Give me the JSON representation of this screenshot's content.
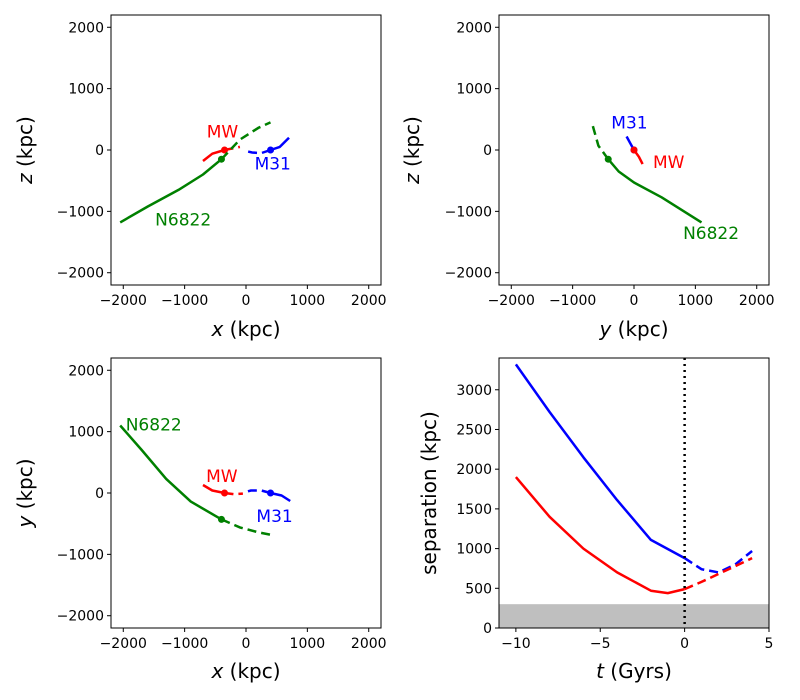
{
  "chart_data": [
    {
      "type": "line",
      "panel": "x-z",
      "xlabel_var": "x",
      "xlabel_unit": " (kpc)",
      "ylabel_var": "z",
      "ylabel_unit": " (kpc)",
      "xlim": [
        -2200,
        2200
      ],
      "ylim": [
        -2200,
        2200
      ],
      "xticks": [
        -2000,
        -1000,
        0,
        1000,
        2000
      ],
      "yticks": [
        -2000,
        -1000,
        0,
        1000,
        2000
      ],
      "series": [
        {
          "name": "MW",
          "color": "#ff0000",
          "marker": [
            -350,
            0
          ],
          "solid": [
            [
              -700,
              -180
            ],
            [
              -550,
              -60
            ],
            [
              -350,
              0
            ]
          ],
          "dashed": [
            [
              -350,
              0
            ],
            [
              -200,
              30
            ],
            [
              -100,
              50
            ]
          ]
        },
        {
          "name": "M31",
          "color": "#0000ff",
          "marker": [
            400,
            0
          ],
          "solid": [
            [
              400,
              0
            ],
            [
              550,
              50
            ],
            [
              700,
              200
            ]
          ],
          "dashed": [
            [
              400,
              0
            ],
            [
              250,
              -50
            ],
            [
              100,
              -40
            ],
            [
              -30,
              -10
            ]
          ]
        },
        {
          "name": "N6822",
          "color": "#008000",
          "marker": [
            -400,
            -150
          ],
          "solid": [
            [
              -2050,
              -1180
            ],
            [
              -1600,
              -920
            ],
            [
              -1100,
              -650
            ],
            [
              -700,
              -400
            ],
            [
              -400,
              -150
            ]
          ],
          "dashed": [
            [
              -400,
              -150
            ],
            [
              -100,
              170
            ],
            [
              200,
              360
            ],
            [
              400,
              450
            ]
          ]
        }
      ],
      "annotations": [
        {
          "text": "MW",
          "color": "#ff0000",
          "at": [
            -640,
            200
          ]
        },
        {
          "text": "M31",
          "color": "#0000ff",
          "at": [
            140,
            -320
          ]
        },
        {
          "text": "N6822",
          "color": "#008000",
          "at": [
            -1480,
            -1230
          ]
        }
      ]
    },
    {
      "type": "line",
      "panel": "y-z",
      "xlabel_var": "y",
      "xlabel_unit": " (kpc)",
      "ylabel_var": "z",
      "ylabel_unit": " (kpc)",
      "xlim": [
        -2200,
        2200
      ],
      "ylim": [
        -2200,
        2200
      ],
      "xticks": [
        -2000,
        -1000,
        0,
        1000,
        2000
      ],
      "yticks": [
        -2000,
        -1000,
        0,
        1000,
        2000
      ],
      "series": [
        {
          "name": "M31",
          "color": "#0000ff",
          "marker": [
            0,
            0
          ],
          "solid": [
            [
              -120,
              220
            ],
            [
              -60,
              110
            ],
            [
              0,
              0
            ]
          ],
          "dashed": []
        },
        {
          "name": "MW",
          "color": "#ff0000",
          "marker": [
            0,
            0
          ],
          "solid": [
            [
              0,
              0
            ],
            [
              80,
              -110
            ],
            [
              140,
              -230
            ]
          ],
          "dashed": []
        },
        {
          "name": "N6822",
          "color": "#008000",
          "marker": [
            -420,
            -150
          ],
          "solid": [
            [
              -420,
              -150
            ],
            [
              -250,
              -350
            ],
            [
              0,
              -530
            ],
            [
              450,
              -770
            ],
            [
              1100,
              -1180
            ]
          ],
          "dashed": [
            [
              -420,
              -150
            ],
            [
              -580,
              70
            ],
            [
              -680,
              420
            ]
          ]
        }
      ],
      "annotations": [
        {
          "text": "M31",
          "color": "#0000ff",
          "at": [
            -370,
            350
          ]
        },
        {
          "text": "MW",
          "color": "#ff0000",
          "at": [
            310,
            -290
          ]
        },
        {
          "text": "N6822",
          "color": "#008000",
          "at": [
            800,
            -1450
          ]
        }
      ]
    },
    {
      "type": "line",
      "panel": "x-y",
      "xlabel_var": "x",
      "xlabel_unit": " (kpc)",
      "ylabel_var": "y",
      "ylabel_unit": " (kpc)",
      "xlim": [
        -2200,
        2200
      ],
      "ylim": [
        -2200,
        2200
      ],
      "xticks": [
        -2000,
        -1000,
        0,
        1000,
        2000
      ],
      "yticks": [
        -2000,
        -1000,
        0,
        1000,
        2000
      ],
      "series": [
        {
          "name": "MW",
          "color": "#ff0000",
          "marker": [
            -350,
            0
          ],
          "solid": [
            [
              -700,
              130
            ],
            [
              -550,
              40
            ],
            [
              -350,
              0
            ]
          ],
          "dashed": [
            [
              -350,
              0
            ],
            [
              -200,
              -20
            ],
            [
              -50,
              -10
            ]
          ]
        },
        {
          "name": "M31",
          "color": "#0000ff",
          "marker": [
            400,
            0
          ],
          "solid": [
            [
              400,
              0
            ],
            [
              580,
              -40
            ],
            [
              720,
              -130
            ]
          ],
          "dashed": [
            [
              400,
              0
            ],
            [
              250,
              40
            ],
            [
              80,
              40
            ],
            [
              -30,
              10
            ]
          ]
        },
        {
          "name": "N6822",
          "color": "#008000",
          "marker": [
            -400,
            -430
          ],
          "solid": [
            [
              -2050,
              1100
            ],
            [
              -1700,
              700
            ],
            [
              -1300,
              230
            ],
            [
              -900,
              -140
            ],
            [
              -400,
              -430
            ]
          ],
          "dashed": [
            [
              -400,
              -430
            ],
            [
              -100,
              -560
            ],
            [
              200,
              -640
            ],
            [
              400,
              -680
            ]
          ]
        }
      ],
      "annotations": [
        {
          "text": "N6822",
          "color": "#008000",
          "at": [
            -1960,
            1020
          ]
        },
        {
          "text": "MW",
          "color": "#ff0000",
          "at": [
            -650,
            180
          ]
        },
        {
          "text": "M31",
          "color": "#0000ff",
          "at": [
            170,
            -470
          ]
        }
      ]
    },
    {
      "type": "line",
      "panel": "separation-vs-time",
      "xlabel_var": "t",
      "xlabel_unit": " (Gyrs)",
      "ylabel_var": "",
      "ylabel_unit": "separation (kpc)",
      "xlim": [
        -11,
        5
      ],
      "ylim": [
        0,
        3400
      ],
      "xticks": [
        -10,
        -5,
        0,
        5
      ],
      "yticks": [
        0,
        500,
        1000,
        1500,
        2000,
        2500,
        3000
      ],
      "shaded_below": 300,
      "vline_x": 0,
      "series": [
        {
          "name": "",
          "color": "#0000ff",
          "solid": [
            [
              -10,
              3320
            ],
            [
              -8,
              2720
            ],
            [
              -6,
              2150
            ],
            [
              -4,
              1610
            ],
            [
              -2,
              1110
            ],
            [
              0,
              880
            ]
          ],
          "dashed": [
            [
              0,
              880
            ],
            [
              1,
              740
            ],
            [
              2,
              700
            ],
            [
              3,
              800
            ],
            [
              4,
              970
            ]
          ]
        },
        {
          "name": "",
          "color": "#ff0000",
          "solid": [
            [
              -10,
              1900
            ],
            [
              -8,
              1400
            ],
            [
              -6,
              1000
            ],
            [
              -4,
              700
            ],
            [
              -2,
              470
            ],
            [
              -1,
              440
            ],
            [
              0,
              490
            ]
          ],
          "dashed": [
            [
              0,
              490
            ],
            [
              1,
              580
            ],
            [
              2,
              680
            ],
            [
              3,
              780
            ],
            [
              4,
              880
            ]
          ]
        }
      ]
    }
  ]
}
